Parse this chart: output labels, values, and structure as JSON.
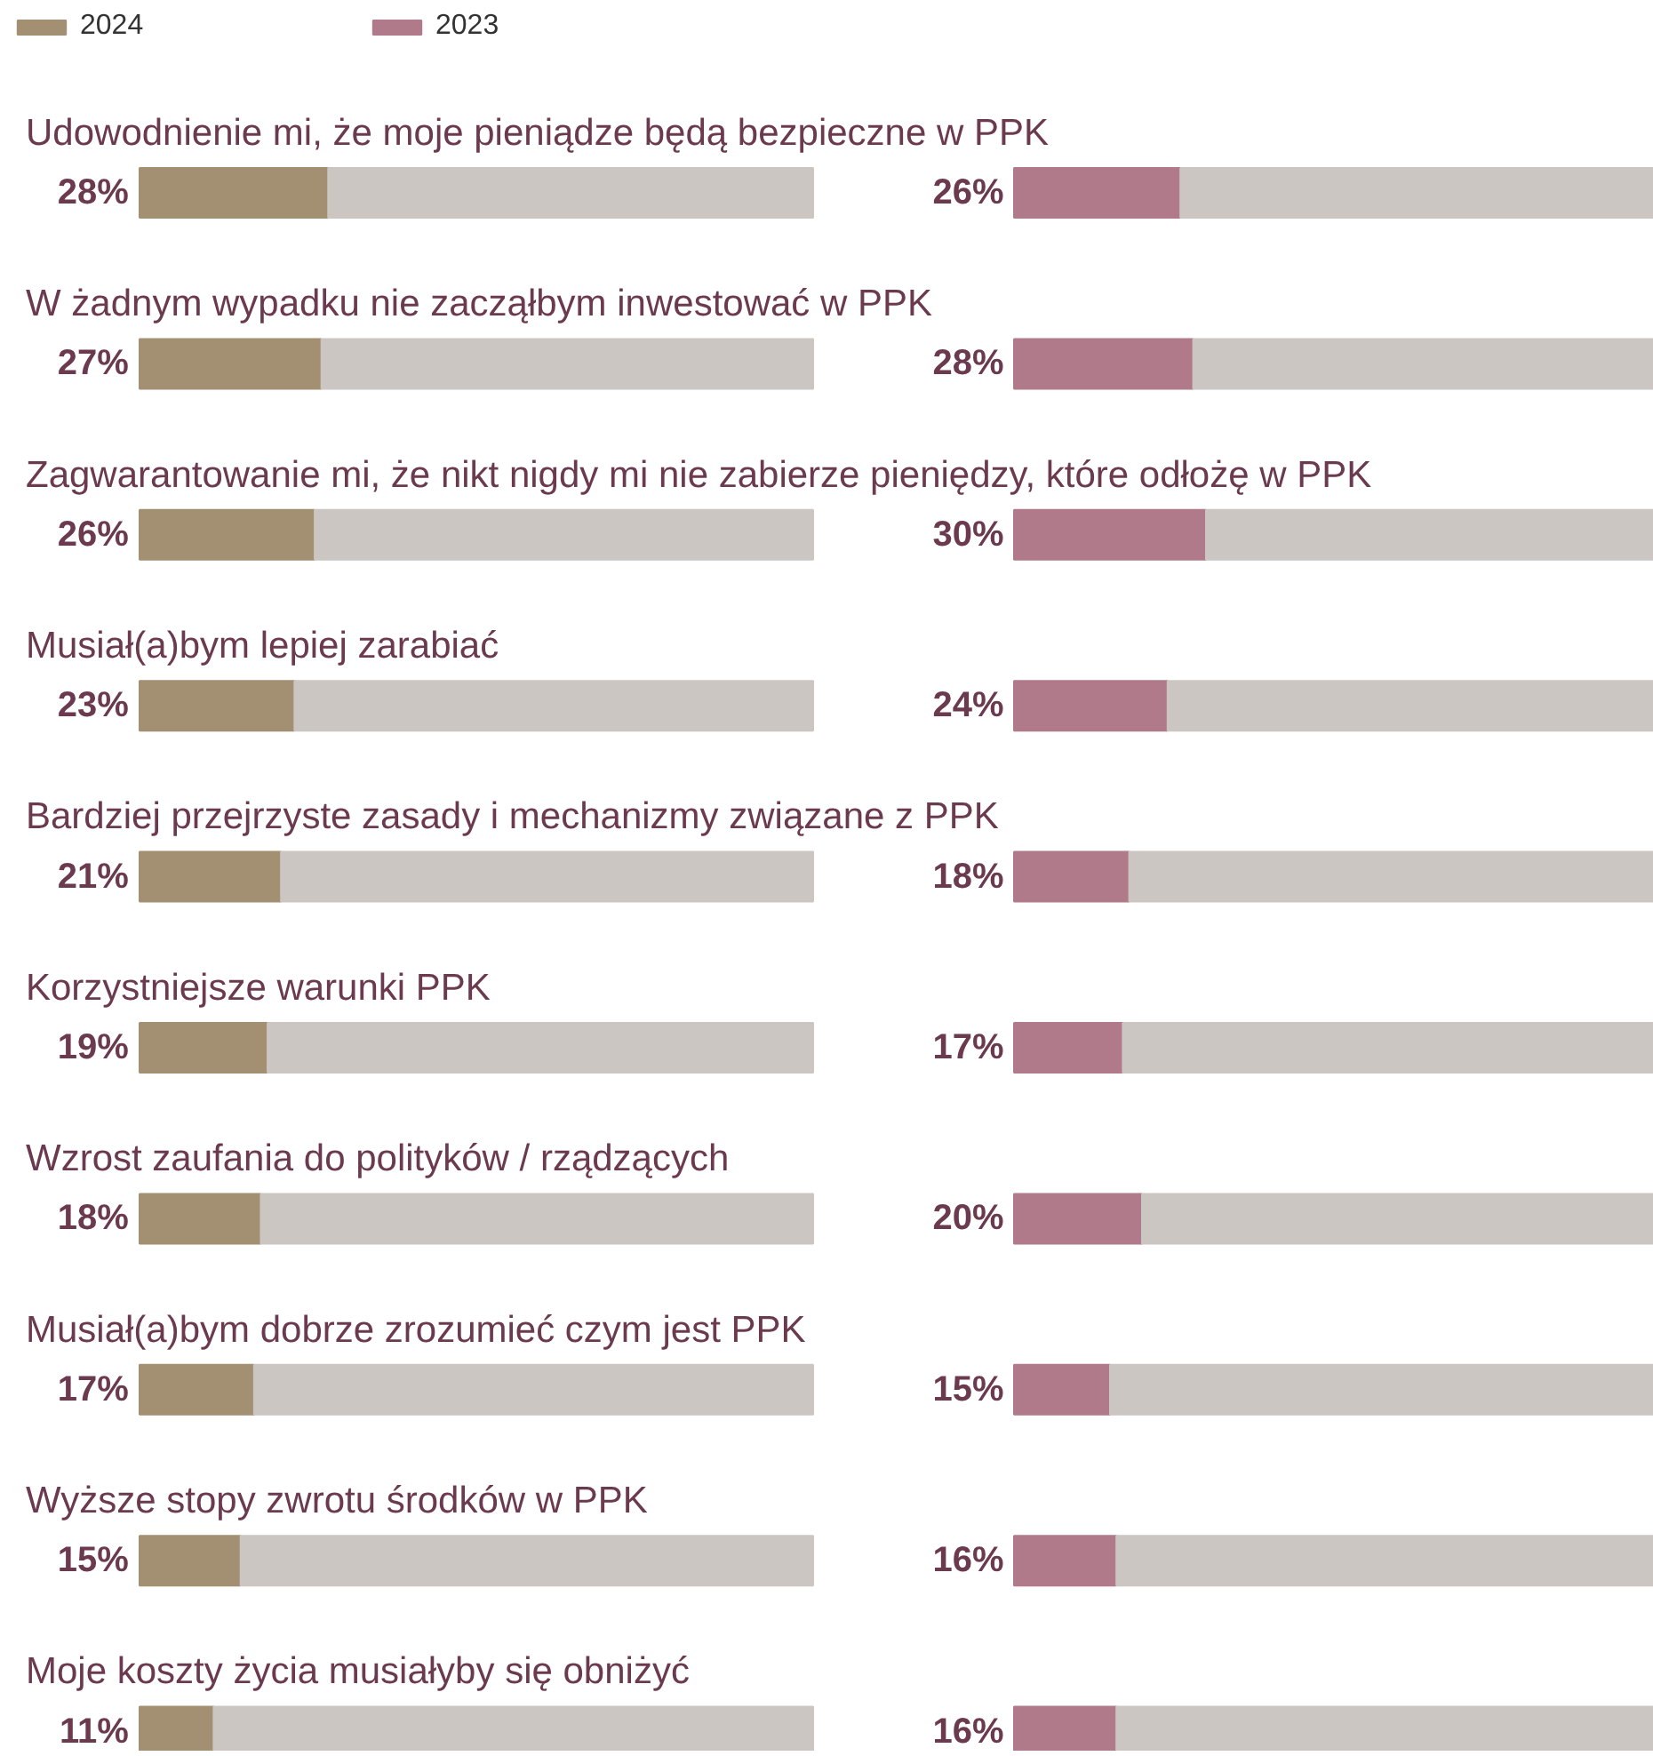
{
  "chart_data": [
    {
      "type": "bar",
      "orientation": "horizontal",
      "stacked": true,
      "categories": [
        "Udowodnienie mi, że moje pieniądze będą bezpieczne w PPK",
        "W żadnym wypadku nie zacząłbym inwestować w PPK",
        "Zagwarantowanie mi, że nikt nigdy mi nie zabierze pieniędzy, które odłożę w PPK",
        "Musiał(a)bym lepiej zarabiać",
        "Bardziej przejrzyste zasady i mechanizmy związane z PPK",
        "Korzystniejsze warunki PPK",
        "Wzrost zaufania do polityków / rządzących",
        "Musiał(a)bym dobrze zrozumieć czym jest PPK",
        "Wyższe stopy zwrotu środków w PPK",
        "Moje koszty życia musiałyby się obniżyć"
      ],
      "series": [
        {
          "name": "2024",
          "color": "#a38f72",
          "values": [
            28,
            27,
            26,
            23,
            21,
            19,
            18,
            17,
            15,
            11
          ],
          "value_labels": [
            "28%",
            "27%",
            "26%",
            "23%",
            "21%",
            "19%",
            "18%",
            "17%",
            "15%",
            "11%"
          ]
        },
        {
          "color": "#cbc6c2",
          "values": [
            72,
            73,
            74,
            77,
            79,
            81,
            82,
            83,
            85,
            89
          ]
        }
      ],
      "xlim": [
        0,
        100
      ],
      "tick_labels": false,
      "legend": "top left"
    },
    {
      "type": "bar",
      "orientation": "horizontal",
      "stacked": true,
      "categories": [
        null,
        null,
        null,
        null,
        null,
        null,
        null,
        null,
        null,
        null
      ],
      "series": [
        {
          "name": "2023",
          "color": "#b07a8a",
          "values": [
            26,
            28,
            30,
            24,
            18,
            17,
            20,
            15,
            16,
            16
          ],
          "value_labels": [
            "26%",
            "28%",
            "30%",
            "24%",
            "18%",
            "17%",
            "20%",
            "15%",
            "16%",
            "16%"
          ]
        },
        {
          "color": "#cbc6c2",
          "values": [
            74,
            72,
            70,
            76,
            82,
            83,
            80,
            85,
            84,
            84
          ]
        }
      ],
      "xlim": [
        0,
        100
      ],
      "tick_labels": false,
      "legend": "top left"
    }
  ]
}
